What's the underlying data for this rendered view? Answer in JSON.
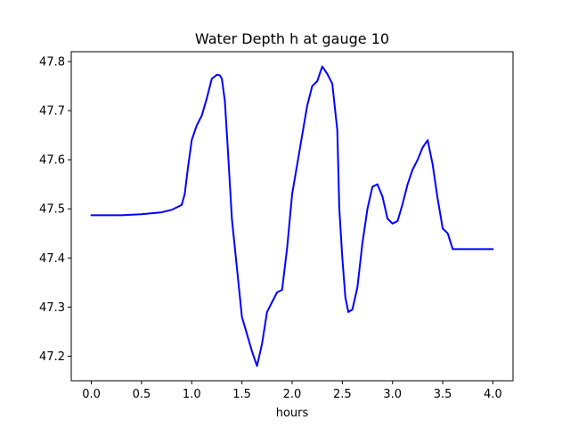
{
  "chart_data": {
    "type": "line",
    "title": "Water Depth h at gauge 10",
    "xlabel": "hours",
    "ylabel": "",
    "xlim": [
      -0.2,
      4.2
    ],
    "ylim": [
      47.15,
      47.82
    ],
    "xticks": [
      0.0,
      0.5,
      1.0,
      1.5,
      2.0,
      2.5,
      3.0,
      3.5,
      4.0
    ],
    "xtick_labels": [
      "0.0",
      "0.5",
      "1.0",
      "1.5",
      "2.0",
      "2.5",
      "3.0",
      "3.5",
      "4.0"
    ],
    "yticks": [
      47.2,
      47.3,
      47.4,
      47.5,
      47.6,
      47.7,
      47.8
    ],
    "ytick_labels": [
      "47.2",
      "47.3",
      "47.4",
      "47.5",
      "47.6",
      "47.7",
      "47.8"
    ],
    "grid": false,
    "legend": "none",
    "series": [
      {
        "color": "#0000ff",
        "x": [
          0.0,
          0.3,
          0.5,
          0.7,
          0.8,
          0.85,
          0.9,
          0.93,
          0.96,
          1.0,
          1.05,
          1.1,
          1.15,
          1.2,
          1.25,
          1.28,
          1.3,
          1.33,
          1.36,
          1.4,
          1.45,
          1.5,
          1.55,
          1.6,
          1.65,
          1.7,
          1.75,
          1.8,
          1.85,
          1.9,
          1.95,
          2.0,
          2.05,
          2.1,
          2.15,
          2.2,
          2.25,
          2.3,
          2.35,
          2.4,
          2.45,
          2.47,
          2.5,
          2.53,
          2.56,
          2.6,
          2.65,
          2.7,
          2.75,
          2.8,
          2.85,
          2.9,
          2.95,
          3.0,
          3.05,
          3.1,
          3.15,
          3.2,
          3.25,
          3.3,
          3.35,
          3.4,
          3.45,
          3.5,
          3.55,
          3.6,
          3.65,
          3.7,
          3.75,
          3.8,
          3.85,
          3.9,
          3.95,
          4.0
        ],
        "y": [
          47.487,
          47.487,
          47.489,
          47.493,
          47.498,
          47.503,
          47.508,
          47.53,
          47.58,
          47.64,
          47.67,
          47.69,
          47.725,
          47.765,
          47.773,
          47.772,
          47.765,
          47.72,
          47.62,
          47.48,
          47.38,
          47.28,
          47.245,
          47.21,
          47.18,
          47.225,
          47.29,
          47.31,
          47.33,
          47.335,
          47.42,
          47.53,
          47.59,
          47.65,
          47.71,
          47.75,
          47.76,
          47.79,
          47.775,
          47.755,
          47.66,
          47.5,
          47.4,
          47.32,
          47.29,
          47.295,
          47.34,
          47.43,
          47.5,
          47.545,
          47.55,
          47.525,
          47.48,
          47.47,
          47.475,
          47.51,
          47.55,
          47.58,
          47.6,
          47.625,
          47.64,
          47.59,
          47.52,
          47.46,
          47.45,
          47.418,
          47.418,
          47.418,
          47.418,
          47.418,
          47.418,
          47.418,
          47.418,
          47.418
        ]
      }
    ]
  }
}
